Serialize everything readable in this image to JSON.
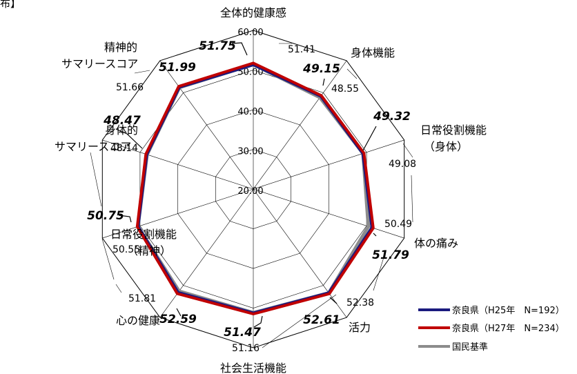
{
  "corner_text": "布】",
  "chart_data": {
    "type": "radar",
    "axes": [
      {
        "label_lines": [
          "全体的健康感"
        ],
        "h27": 51.75,
        "nat": 51.41
      },
      {
        "label_lines": [
          "身体機能"
        ],
        "h27": 49.15,
        "nat": 48.55
      },
      {
        "label_lines": [
          "日常役割機能",
          "（身体）"
        ],
        "h27": 49.32,
        "nat": 49.08
      },
      {
        "label_lines": [
          "体の痛み"
        ],
        "h27": 51.79,
        "nat": 50.49
      },
      {
        "label_lines": [
          "活力"
        ],
        "h27": 52.61,
        "nat": 52.38
      },
      {
        "label_lines": [
          "社会生活機能"
        ],
        "h27": 51.47,
        "nat": 51.16
      },
      {
        "label_lines": [
          "心の健康"
        ],
        "h27": 52.59,
        "nat": 51.81
      },
      {
        "label_lines": [
          "日常役割機能",
          "（精神）"
        ],
        "h27": 50.75,
        "nat": 50.55
      },
      {
        "label_lines": [
          "身体的",
          "サマリースコア"
        ],
        "h27": 48.47,
        "nat": 48.14
      },
      {
        "label_lines": [
          "精神的",
          "サマリースコア"
        ],
        "h27": 51.99,
        "nat": 51.66
      }
    ],
    "series": [
      {
        "name": "奈良県（H25年　N=192）",
        "color": "#1a1a7e",
        "values": [
          51.3,
          48.9,
          49.0,
          51.4,
          52.3,
          51.2,
          52.2,
          50.5,
          48.2,
          51.7
        ]
      },
      {
        "name": "奈良県（H27年　N=234）",
        "color": "#c00000",
        "values": [
          51.75,
          49.15,
          49.32,
          51.79,
          52.61,
          51.47,
          52.59,
          50.75,
          48.47,
          51.99
        ]
      },
      {
        "name": "国民基準",
        "color": "#8c8c8c",
        "values": [
          51.41,
          48.55,
          49.08,
          50.49,
          52.38,
          51.16,
          51.81,
          50.55,
          48.14,
          51.66
        ]
      }
    ],
    "scale": {
      "min": 20,
      "max": 60,
      "ticks": [
        "20.00",
        "30.00",
        "40.00",
        "50.00",
        "60.00"
      ]
    },
    "legend_position": "bottom-right"
  }
}
